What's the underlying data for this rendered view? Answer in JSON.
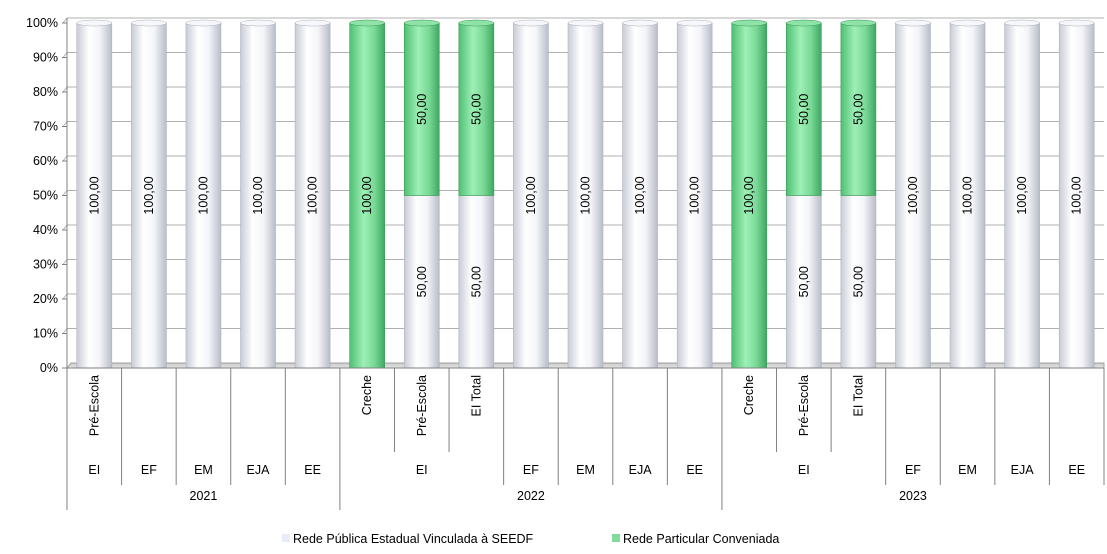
{
  "chart_data": {
    "type": "bar",
    "stacked": true,
    "percent_stacked": true,
    "y_ticks": [
      "0%",
      "10%",
      "20%",
      "30%",
      "40%",
      "50%",
      "60%",
      "70%",
      "80%",
      "90%",
      "100%"
    ],
    "ylim": [
      0,
      100
    ],
    "categories": [
      {
        "year": "2021",
        "level": "EI",
        "sub": "Pré-Escola"
      },
      {
        "year": "2021",
        "level": "EF",
        "sub": ""
      },
      {
        "year": "2021",
        "level": "EM",
        "sub": ""
      },
      {
        "year": "2021",
        "level": "EJA",
        "sub": ""
      },
      {
        "year": "2021",
        "level": "EE",
        "sub": ""
      },
      {
        "year": "2022",
        "level": "EI",
        "sub": "Creche"
      },
      {
        "year": "2022",
        "level": "EI",
        "sub": "Pré-Escola"
      },
      {
        "year": "2022",
        "level": "EI",
        "sub": "EI Total"
      },
      {
        "year": "2022",
        "level": "EF",
        "sub": ""
      },
      {
        "year": "2022",
        "level": "EM",
        "sub": ""
      },
      {
        "year": "2022",
        "level": "EJA",
        "sub": ""
      },
      {
        "year": "2022",
        "level": "EE",
        "sub": ""
      },
      {
        "year": "2023",
        "level": "EI",
        "sub": "Creche"
      },
      {
        "year": "2023",
        "level": "EI",
        "sub": "Pré-Escola"
      },
      {
        "year": "2023",
        "level": "EI",
        "sub": "EI Total"
      },
      {
        "year": "2023",
        "level": "EF",
        "sub": ""
      },
      {
        "year": "2023",
        "level": "EM",
        "sub": ""
      },
      {
        "year": "2023",
        "level": "EJA",
        "sub": ""
      },
      {
        "year": "2023",
        "level": "EE",
        "sub": ""
      }
    ],
    "level_groups": [
      {
        "label": "EI",
        "start": 0,
        "end": 0
      },
      {
        "label": "EF",
        "start": 1,
        "end": 1
      },
      {
        "label": "EM",
        "start": 2,
        "end": 2
      },
      {
        "label": "EJA",
        "start": 3,
        "end": 3
      },
      {
        "label": "EE",
        "start": 4,
        "end": 4
      },
      {
        "label": "EI",
        "start": 5,
        "end": 7
      },
      {
        "label": "EF",
        "start": 8,
        "end": 8
      },
      {
        "label": "EM",
        "start": 9,
        "end": 9
      },
      {
        "label": "EJA",
        "start": 10,
        "end": 10
      },
      {
        "label": "EE",
        "start": 11,
        "end": 11
      },
      {
        "label": "EI",
        "start": 12,
        "end": 14
      },
      {
        "label": "EF",
        "start": 15,
        "end": 15
      },
      {
        "label": "EM",
        "start": 16,
        "end": 16
      },
      {
        "label": "EJA",
        "start": 17,
        "end": 17
      },
      {
        "label": "EE",
        "start": 18,
        "end": 18
      }
    ],
    "year_groups": [
      {
        "label": "2021",
        "start": 0,
        "end": 4
      },
      {
        "label": "2022",
        "start": 5,
        "end": 11
      },
      {
        "label": "2023",
        "start": 12,
        "end": 18
      }
    ],
    "series": [
      {
        "name": "Rede Pública Estadual Vinculada à SEEDF",
        "color": "#eef0f7",
        "values": [
          100,
          100,
          100,
          100,
          100,
          0,
          50,
          50,
          100,
          100,
          100,
          100,
          0,
          50,
          50,
          100,
          100,
          100,
          100
        ],
        "labels": [
          "100,00",
          "100,00",
          "100,00",
          "100,00",
          "100,00",
          "",
          "50,00",
          "50,00",
          "100,00",
          "100,00",
          "100,00",
          "100,00",
          "",
          "50,00",
          "50,00",
          "100,00",
          "100,00",
          "100,00",
          "100,00"
        ]
      },
      {
        "name": "Rede Particular Conveniada",
        "color": "#86e0a2",
        "values": [
          0,
          0,
          0,
          0,
          0,
          100,
          50,
          50,
          0,
          0,
          0,
          0,
          100,
          50,
          50,
          0,
          0,
          0,
          0
        ],
        "labels": [
          "",
          "",
          "",
          "",
          "",
          "100,00",
          "50,00",
          "50,00",
          "",
          "",
          "",
          "",
          "100,00",
          "50,00",
          "50,00",
          "",
          "",
          "",
          ""
        ]
      }
    ],
    "legend_position": "bottom-center",
    "grid": true
  }
}
